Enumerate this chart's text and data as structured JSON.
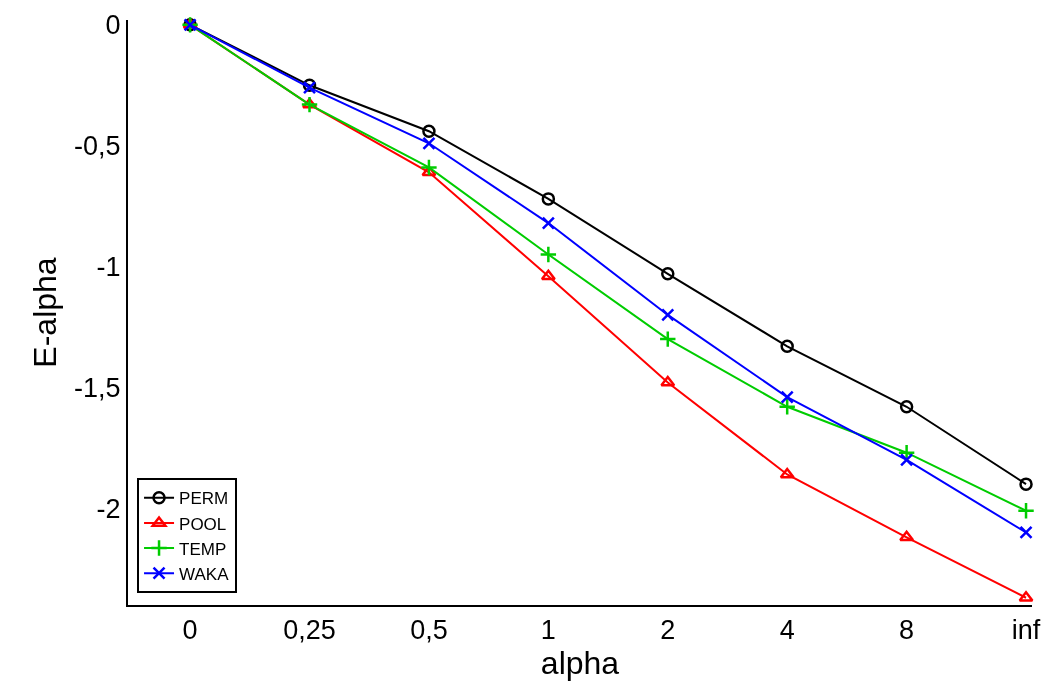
{
  "chart_data": {
    "type": "line",
    "xlabel": "alpha",
    "ylabel": "E-alpha",
    "categories": [
      "0",
      "0,25",
      "0,5",
      "1",
      "2",
      "4",
      "8",
      "inf"
    ],
    "ylim": [
      -2.4,
      0.02
    ],
    "yticks": [
      0,
      {
        "value": -0.5,
        "label": "-0,5"
      },
      {
        "value": -1,
        "label": "-1"
      },
      {
        "value": -1.5,
        "label": "-1,5"
      },
      {
        "value": -2,
        "label": "-2"
      }
    ],
    "grid": false,
    "legend": "bottom left",
    "line_style": "solid",
    "series": [
      {
        "name": "PERM",
        "color": "#000000",
        "marker": "circle",
        "values": [
          0,
          -0.25,
          -0.44,
          -0.72,
          -1.03,
          -1.33,
          -1.58,
          -1.9
        ]
      },
      {
        "name": "POOL",
        "color": "#ff0000",
        "marker": "triangle",
        "values": [
          0,
          -0.33,
          -0.61,
          -1.04,
          -1.48,
          -1.86,
          -2.12,
          -2.37
        ]
      },
      {
        "name": "TEMP",
        "color": "#00cc00",
        "marker": "cross",
        "values": [
          0,
          -0.33,
          -0.59,
          -0.95,
          -1.3,
          -1.58,
          -1.77,
          -2.01
        ]
      },
      {
        "name": "WAKA",
        "color": "#0000ff",
        "marker": "x",
        "values": [
          0,
          -0.26,
          -0.49,
          -0.82,
          -1.2,
          -1.54,
          -1.8,
          -2.1
        ]
      }
    ]
  }
}
